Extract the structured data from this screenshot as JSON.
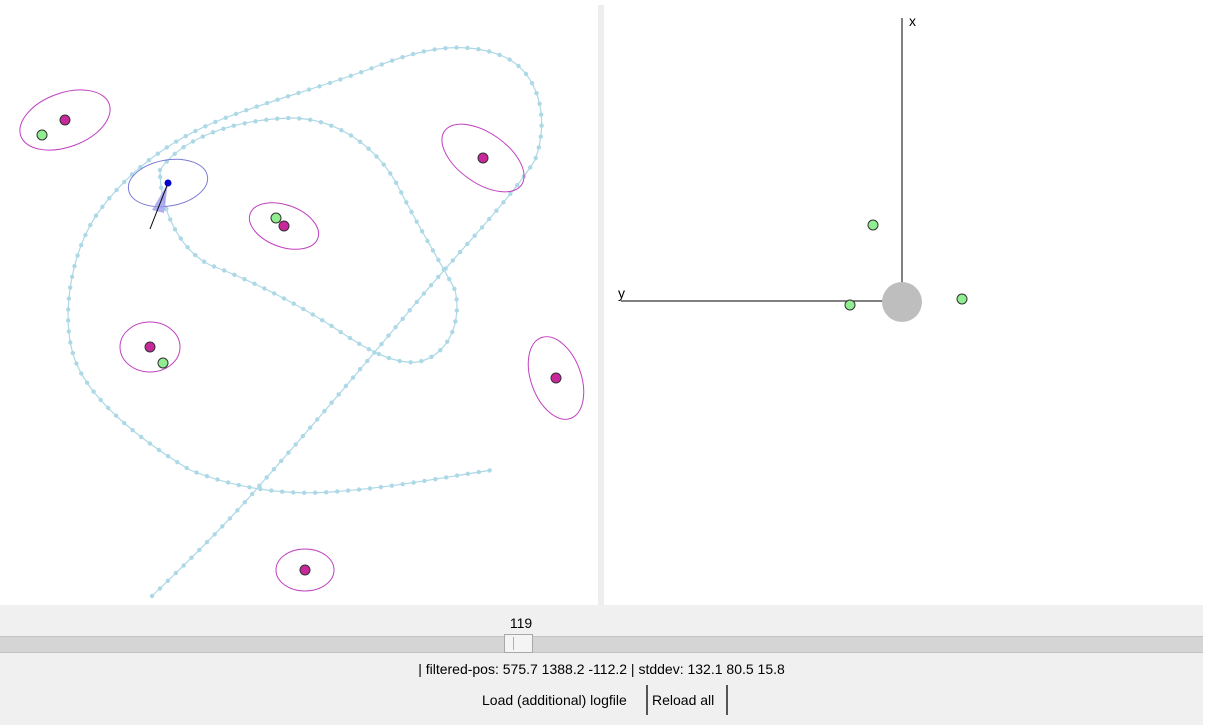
{
  "map_view": {
    "trajectory_color": "#add8e6",
    "landmark_ellipse_color": "#c040c0",
    "landmark_color": "#c8289b",
    "observation_color": "#90ee90",
    "robot_color": "#0000c8"
  },
  "robot_view": {
    "x_axis_label": "x",
    "y_axis_label": "y",
    "robot_color": "#bebebe",
    "observation_color": "#90ee90"
  },
  "controls": {
    "frame_number": "119",
    "slider_value": 119,
    "status_text": "| filtered-pos: 575.7 1388.2 -112.2 | stddev: 132.1 80.5 15.8",
    "load_button_label": "Load (additional) logfile",
    "reload_button_label": "Reload all"
  }
}
